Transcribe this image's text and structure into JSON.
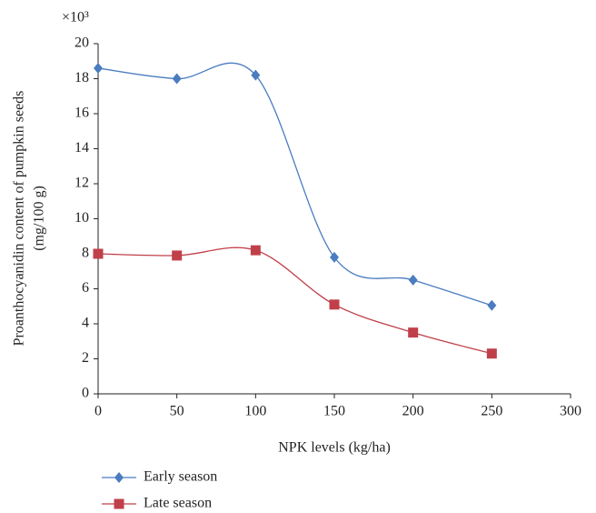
{
  "chart_data": {
    "type": "line",
    "multiplier": "×10³",
    "xlabel": "NPK levels (kg/ha)",
    "ylabel": [
      "Proanthocyanidin content of pumpkin seeds",
      "(mg/100 g)"
    ],
    "x": [
      0,
      50,
      100,
      150,
      200,
      250
    ],
    "series": [
      {
        "name": "Early season",
        "color": "#4a7cc0",
        "marker": "diamond",
        "values": [
          18.6,
          18.0,
          18.2,
          7.8,
          6.5,
          5.05
        ]
      },
      {
        "name": "Late season",
        "color": "#c0404a",
        "marker": "square",
        "values": [
          8.0,
          7.9,
          8.2,
          5.1,
          3.5,
          2.3
        ]
      }
    ],
    "xlim": [
      0,
      300
    ],
    "xticks": [
      0,
      50,
      100,
      150,
      200,
      250,
      300
    ],
    "ylim": [
      0,
      20
    ],
    "yticks": [
      0,
      2,
      4,
      6,
      8,
      10,
      12,
      14,
      16,
      18,
      20
    ],
    "smooth": true,
    "grid": false
  }
}
